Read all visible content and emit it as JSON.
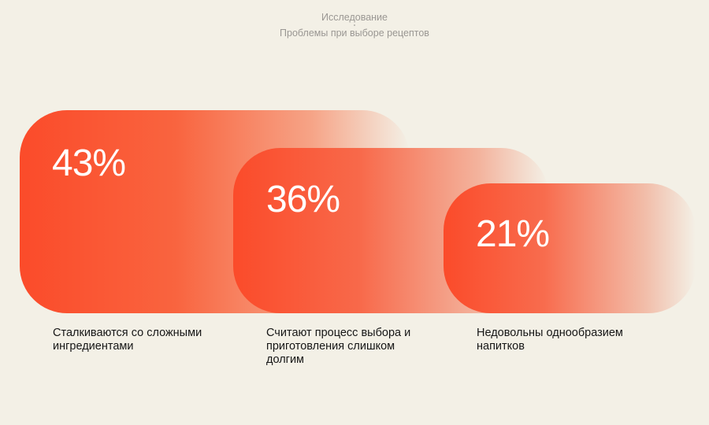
{
  "header": {
    "category": "Исследование",
    "title": "Проблемы при выборе рецептов"
  },
  "colors": {
    "background": "#f3f0e6",
    "accent": "#fb4b2a",
    "label_text": "#161616",
    "header_text": "#9a9793"
  },
  "chart_data": {
    "type": "bar",
    "title": "Проблемы при выборе рецептов",
    "categories": [
      "Сталкиваются со сложными ингредиентами",
      "Считают процесс выбора и приготовления слишком долгим",
      "Недовольны однообразием напитков"
    ],
    "values": [
      43,
      36,
      21
    ],
    "unit": "%",
    "value_labels": [
      "43%",
      "36%",
      "21%"
    ],
    "xlabel": "",
    "ylabel": "",
    "grid": false
  }
}
